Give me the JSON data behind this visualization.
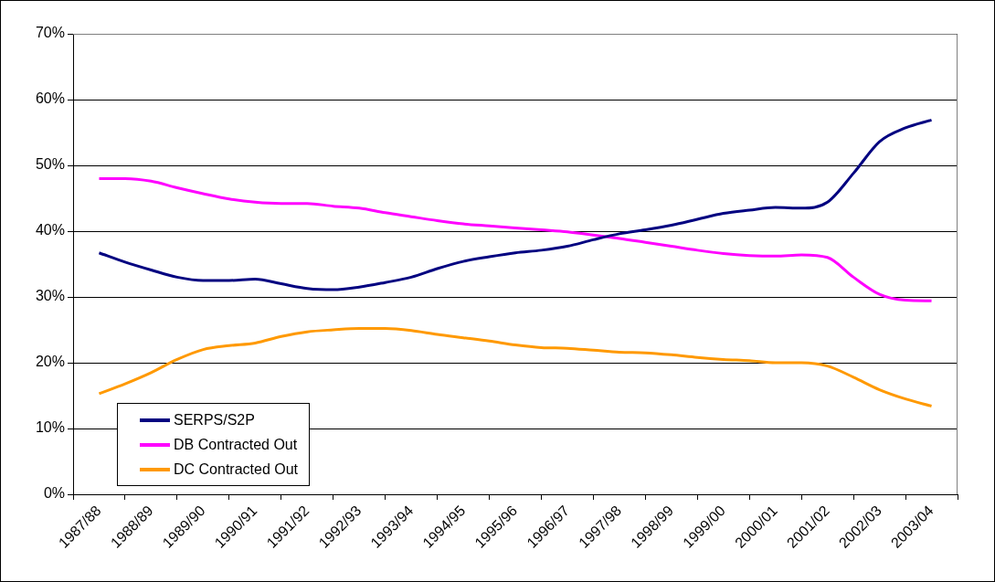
{
  "chart_data": {
    "type": "line",
    "categories": [
      "1987/88",
      null,
      "1988/89",
      null,
      "1989/90",
      null,
      "1990/91",
      null,
      "1991/92",
      null,
      "1992/93",
      null,
      "1993/94",
      null,
      "1994/95",
      null,
      "1995/96",
      null,
      "1996/97",
      null,
      "1997/98",
      null,
      "1998/99",
      null,
      "1999/00",
      null,
      "2000/01",
      null,
      "2001/02",
      null,
      "2002/03",
      null,
      "2003/04"
    ],
    "series": [
      {
        "name": "SERPS/S2P",
        "color": "#000080",
        "values": [
          36.7,
          35.3,
          34.1,
          33.0,
          32.5,
          32.5,
          32.7,
          32.0,
          31.3,
          31.1,
          31.5,
          32.2,
          33.0,
          34.3,
          35.4,
          36.1,
          36.7,
          37.1,
          37.7,
          38.7,
          39.6,
          40.2,
          40.9,
          41.8,
          42.7,
          43.2,
          43.6,
          43.5,
          44.4,
          48.8,
          53.6,
          55.7,
          56.9
        ]
      },
      {
        "name": "DB Contracted Out",
        "color": "#ff00ff",
        "values": [
          48.0,
          48.0,
          47.6,
          46.6,
          45.7,
          44.9,
          44.4,
          44.2,
          44.2,
          43.8,
          43.5,
          42.8,
          42.2,
          41.6,
          41.1,
          40.8,
          40.5,
          40.2,
          39.9,
          39.4,
          38.9,
          38.3,
          37.7,
          37.1,
          36.6,
          36.3,
          36.2,
          36.4,
          36.0,
          33.0,
          30.4,
          29.5,
          29.4
        ]
      },
      {
        "name": "DC Contracted Out",
        "color": "#ff9900",
        "values": [
          15.3,
          16.8,
          18.5,
          20.5,
          22.0,
          22.6,
          23.0,
          24.0,
          24.7,
          25.0,
          25.2,
          25.2,
          24.9,
          24.3,
          23.8,
          23.3,
          22.7,
          22.3,
          22.2,
          21.9,
          21.6,
          21.5,
          21.2,
          20.8,
          20.5,
          20.3,
          20.0,
          20.0,
          19.5,
          17.8,
          15.9,
          14.5,
          13.4
        ]
      }
    ],
    "ylim": [
      0,
      70
    ],
    "yticks": [
      {
        "value": 0,
        "label": "0%"
      },
      {
        "value": 10,
        "label": "10%"
      },
      {
        "value": 20,
        "label": "20%"
      },
      {
        "value": 30,
        "label": "30%"
      },
      {
        "value": 40,
        "label": "40%"
      },
      {
        "value": 50,
        "label": "50%"
      },
      {
        "value": 60,
        "label": "60%"
      },
      {
        "value": 70,
        "label": "70%"
      }
    ],
    "grid": "y",
    "legend": "bottom left",
    "marker": "none",
    "line_style": "solid"
  }
}
